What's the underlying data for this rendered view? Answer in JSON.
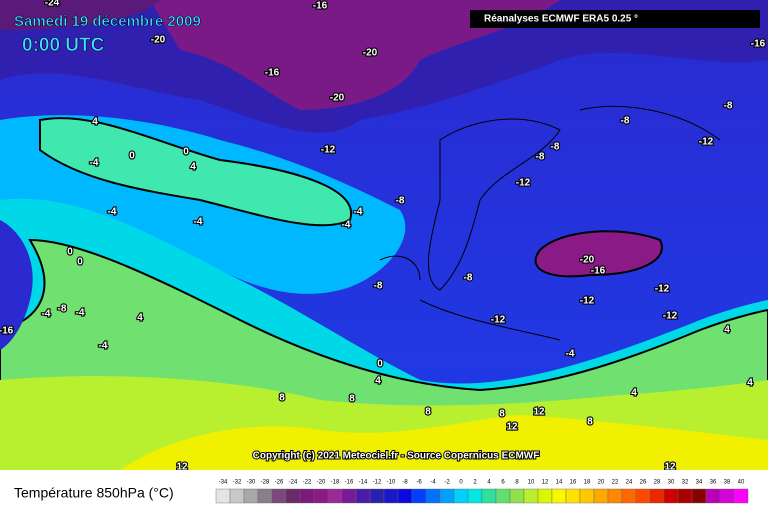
{
  "header": {
    "title": "Samedi 19 décembre 2009",
    "time": "0:00 UTC",
    "source": "Réanalyses ECMWF ERA5 0.25 °"
  },
  "copyright": "Copyright (c) 2021 Meteociel.fr - Source Copernicus ECMWF",
  "legend": {
    "title": "Température 850hPa (°C)",
    "values": [
      -34,
      -32,
      -30,
      -28,
      -26,
      -24,
      -22,
      -20,
      -18,
      -16,
      -14,
      -12,
      -10,
      -8,
      -6,
      -4,
      -2,
      0,
      2,
      4,
      6,
      8,
      10,
      12,
      14,
      16,
      18,
      20,
      22,
      24,
      26,
      28,
      30,
      32,
      34,
      36,
      38,
      40
    ],
    "colors": [
      "#e4e4e4",
      "#c8c8c8",
      "#a8a8a8",
      "#8c7c8c",
      "#7a4a7a",
      "#6a2a6a",
      "#7a1a7a",
      "#8a1a86",
      "#9a2a9a",
      "#7a1a9a",
      "#4a1aa8",
      "#2a20b0",
      "#1818c8",
      "#0a0ae0",
      "#0040ff",
      "#0070ff",
      "#00a0ff",
      "#00d0ff",
      "#00e8e0",
      "#30e0a0",
      "#60e070",
      "#90e050",
      "#b8f030",
      "#d8f800",
      "#f8f800",
      "#ffe000",
      "#ffc800",
      "#ffa800",
      "#ff8800",
      "#ff6800",
      "#ff4800",
      "#e82800",
      "#d00000",
      "#a80000",
      "#880000",
      "#b800b8",
      "#d800d8",
      "#ff00ff"
    ]
  },
  "map_labels": [
    -24,
    -16,
    -20,
    -20,
    -16,
    -20,
    -16,
    -12,
    -8,
    -8,
    -8,
    -12,
    -12,
    -8,
    -4,
    0,
    -4,
    4,
    0,
    4,
    -4,
    -4,
    -8,
    -4,
    -8,
    -4,
    -20,
    -16,
    -12,
    -12,
    -12,
    -12,
    -8,
    0,
    0,
    -8,
    -4,
    4,
    -4,
    -16,
    -4,
    0,
    4,
    8,
    8,
    8,
    8,
    12,
    12,
    8,
    12,
    12,
    4,
    4,
    4
  ]
}
